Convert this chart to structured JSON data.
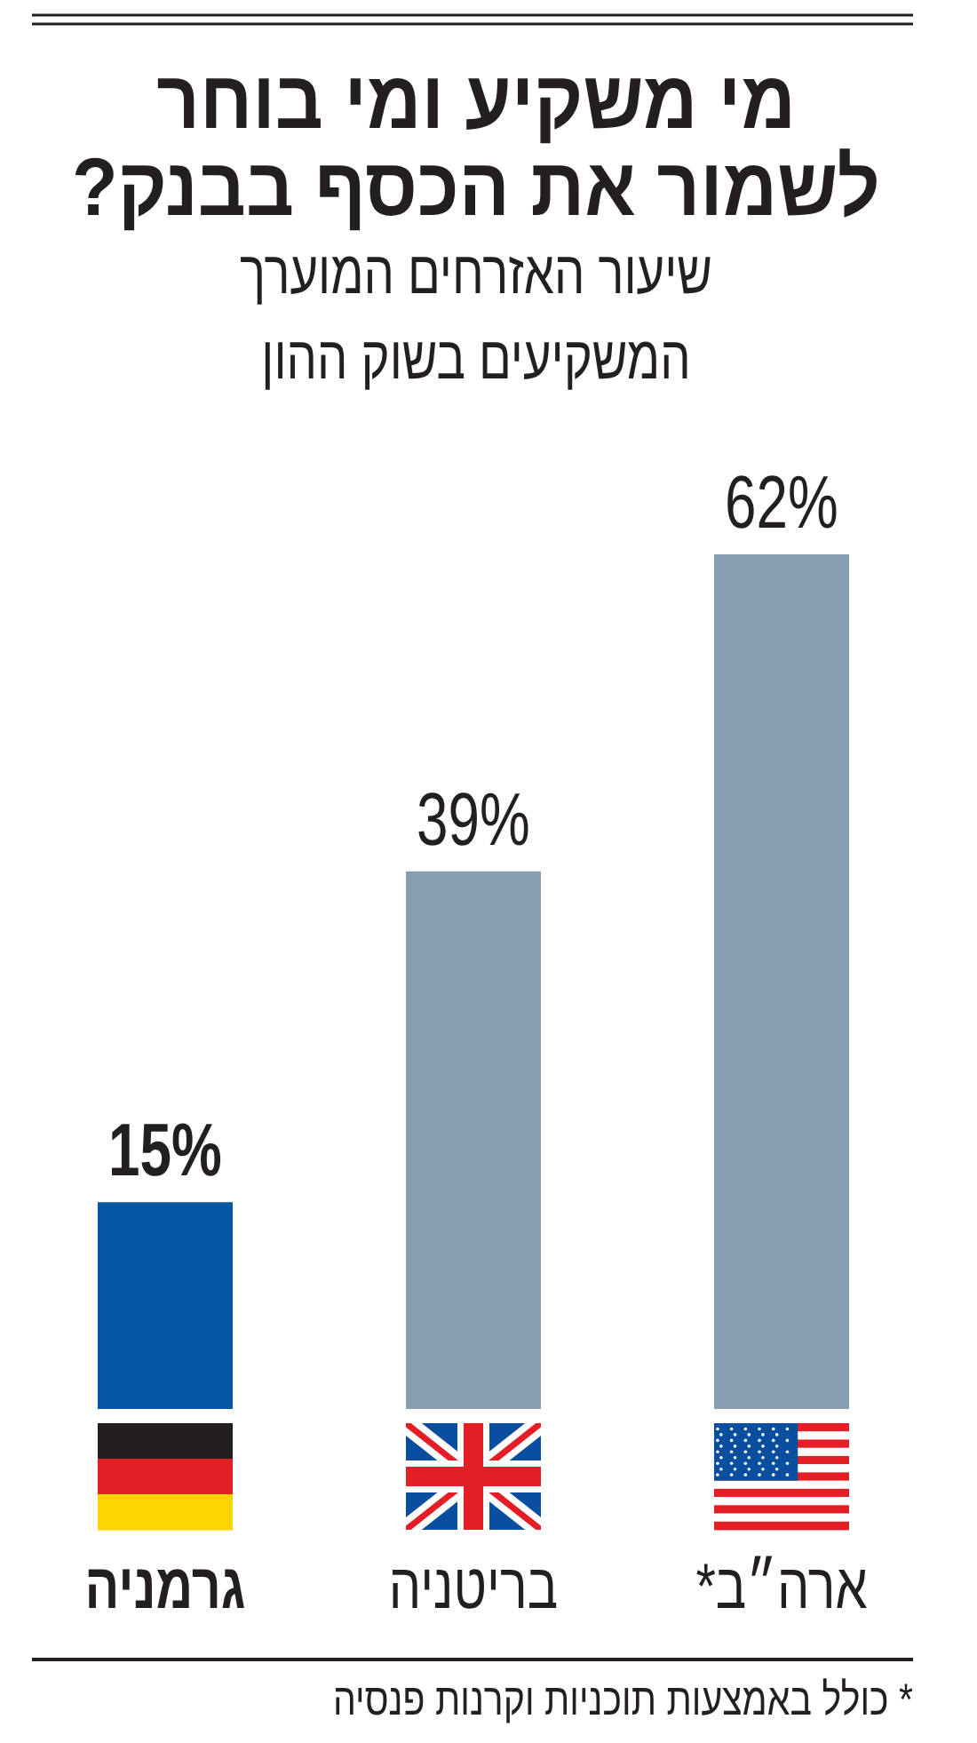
{
  "chart_data": {
    "type": "bar",
    "title": "מי משקיע ומי בוחר לשמור את הכסף בבנק?",
    "subtitle": "שיעור האזרחים המוערך המשקיעים בשוק ההון",
    "categories": [
      "גרמניה",
      "בריטניה",
      "ארה״ב*"
    ],
    "values": [
      15,
      39,
      62
    ],
    "colors": [
      "#0455a4",
      "#879eb3",
      "#879eb3"
    ],
    "value_labels": [
      "15%",
      "39%",
      "62%"
    ],
    "annotations": [
      "* כולל באמצעות תוכניות וקרנות פנסיה"
    ]
  }
}
